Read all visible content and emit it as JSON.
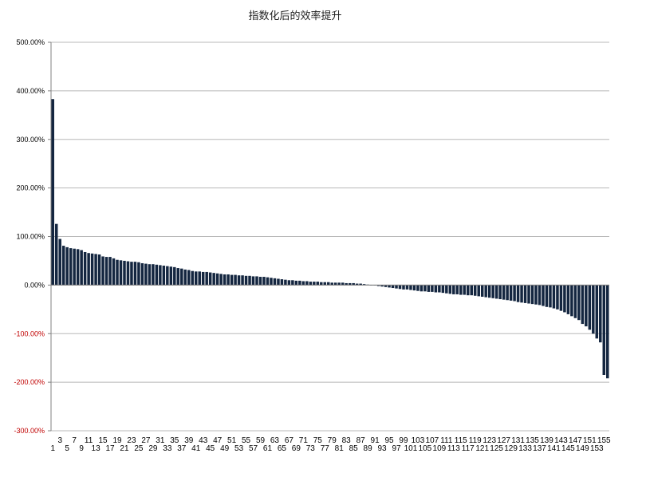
{
  "chart_data": {
    "type": "bar",
    "title": "指数化后的效率提升",
    "xlabel": "",
    "ylabel": "",
    "ylim": [
      -300,
      500
    ],
    "yticks": [
      500,
      400,
      300,
      200,
      100,
      0,
      -100,
      -200,
      -300
    ],
    "ytick_labels": [
      "500.00%",
      "400.00%",
      "300.00%",
      "200.00%",
      "100.00%",
      "0.00%",
      "-100.00%",
      "-200.00%",
      "-300.00%"
    ],
    "grid": true,
    "legend": "none",
    "categories_count": 156,
    "values": [
      383,
      126,
      95,
      81,
      78,
      76,
      75,
      74,
      72,
      68,
      66,
      65,
      64,
      63,
      59,
      58,
      58,
      55,
      52,
      51,
      50,
      49,
      48,
      48,
      47,
      45,
      44,
      43,
      43,
      42,
      41,
      40,
      39,
      38,
      37,
      35,
      34,
      32,
      31,
      29,
      28,
      28,
      27,
      27,
      26,
      25,
      24,
      23,
      22,
      22,
      21,
      21,
      20,
      20,
      19,
      19,
      18,
      18,
      17,
      17,
      16,
      15,
      14,
      13,
      12,
      11,
      10,
      10,
      9,
      9,
      8,
      8,
      7,
      7,
      7,
      6,
      6,
      6,
      5,
      5,
      5,
      5,
      4,
      4,
      4,
      3,
      3,
      2,
      1,
      0,
      -1,
      -2,
      -3,
      -4,
      -5,
      -6,
      -7,
      -8,
      -9,
      -9,
      -10,
      -11,
      -12,
      -13,
      -13,
      -14,
      -14,
      -15,
      -15,
      -16,
      -17,
      -18,
      -19,
      -19,
      -20,
      -20,
      -21,
      -21,
      -22,
      -23,
      -24,
      -25,
      -26,
      -27,
      -28,
      -29,
      -30,
      -31,
      -32,
      -33,
      -35,
      -36,
      -37,
      -38,
      -39,
      -40,
      -41,
      -43,
      -45,
      -46,
      -48,
      -50,
      -53,
      -56,
      -60,
      -64,
      -68,
      -72,
      -80,
      -85,
      -92,
      -100,
      -110,
      -118,
      -185,
      -192
    ]
  },
  "colors": {
    "bar": "#142640",
    "grid": "#b8b8b8",
    "axis": "#808080",
    "positive_tick": "#000000",
    "negative_tick": "#c00000"
  }
}
